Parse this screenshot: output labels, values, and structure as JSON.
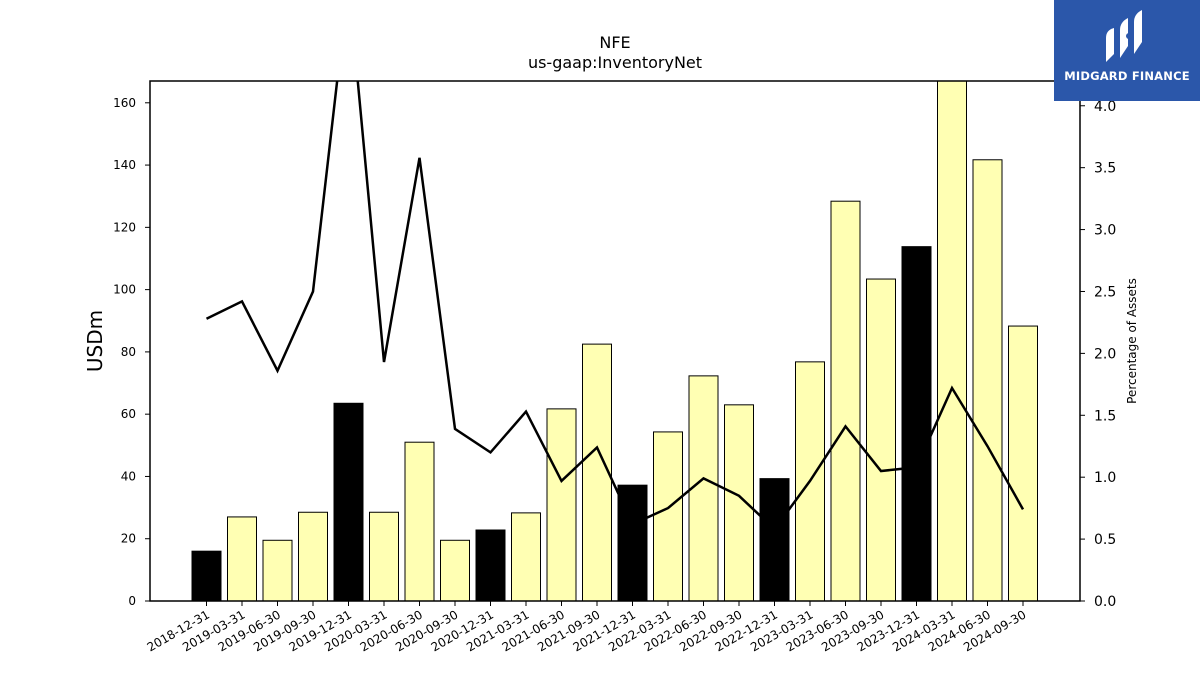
{
  "title": "NFE",
  "subtitle": "us-gaap:InventoryNet",
  "logo": {
    "text": "MIDGARD FINANCE",
    "bg_color": "#2b57aa"
  },
  "chart_data": {
    "type": "bar",
    "categories": [
      "2018-12-31",
      "2019-03-31",
      "2019-06-30",
      "2019-09-30",
      "2019-12-31",
      "2020-03-31",
      "2020-06-30",
      "2020-09-30",
      "2020-12-31",
      "2021-03-31",
      "2021-06-30",
      "2021-09-30",
      "2021-12-31",
      "2022-03-31",
      "2022-06-30",
      "2022-09-30",
      "2022-12-31",
      "2023-03-31",
      "2023-06-30",
      "2023-09-30",
      "2023-12-31",
      "2024-03-31",
      "2024-06-30",
      "2024-09-30"
    ],
    "series": [
      {
        "values": [
          16,
          27,
          19.5,
          28.5,
          63.5,
          28.5,
          51,
          19.5,
          22.8,
          28.3,
          61.7,
          82.5,
          37.2,
          54.3,
          72.3,
          63,
          39.3,
          76.8,
          128.4,
          103.4,
          113.8,
          167,
          141.7,
          88.3
        ],
        "axis": "left"
      },
      {
        "values": [
          2.28,
          2.42,
          1.86,
          2.5,
          5.0,
          1.93,
          3.58,
          1.39,
          1.2,
          1.53,
          0.97,
          1.24,
          0.62,
          0.75,
          0.99,
          0.85,
          0.58,
          0.97,
          1.41,
          1.05,
          1.08,
          1.72,
          1.25,
          0.74
        ],
        "axis": "right",
        "type": "line"
      }
    ],
    "bar_colors": {
      "annual": "#000000",
      "quarter": "#ffffb3"
    },
    "annual_index": [
      0,
      4,
      8,
      12,
      16,
      20
    ],
    "ylabel": "USDm",
    "ylabel_right": "Percentage of Assets",
    "ylim": [
      0,
      167
    ],
    "ylim_right": [
      0,
      4.2
    ],
    "yticks": [
      0,
      20,
      40,
      60,
      80,
      100,
      120,
      140,
      160
    ],
    "yticks_right": [
      "0.0",
      "0.5",
      "1.0",
      "1.5",
      "2.0",
      "2.5",
      "3.0",
      "3.5",
      "4.0"
    ],
    "grid": false
  }
}
